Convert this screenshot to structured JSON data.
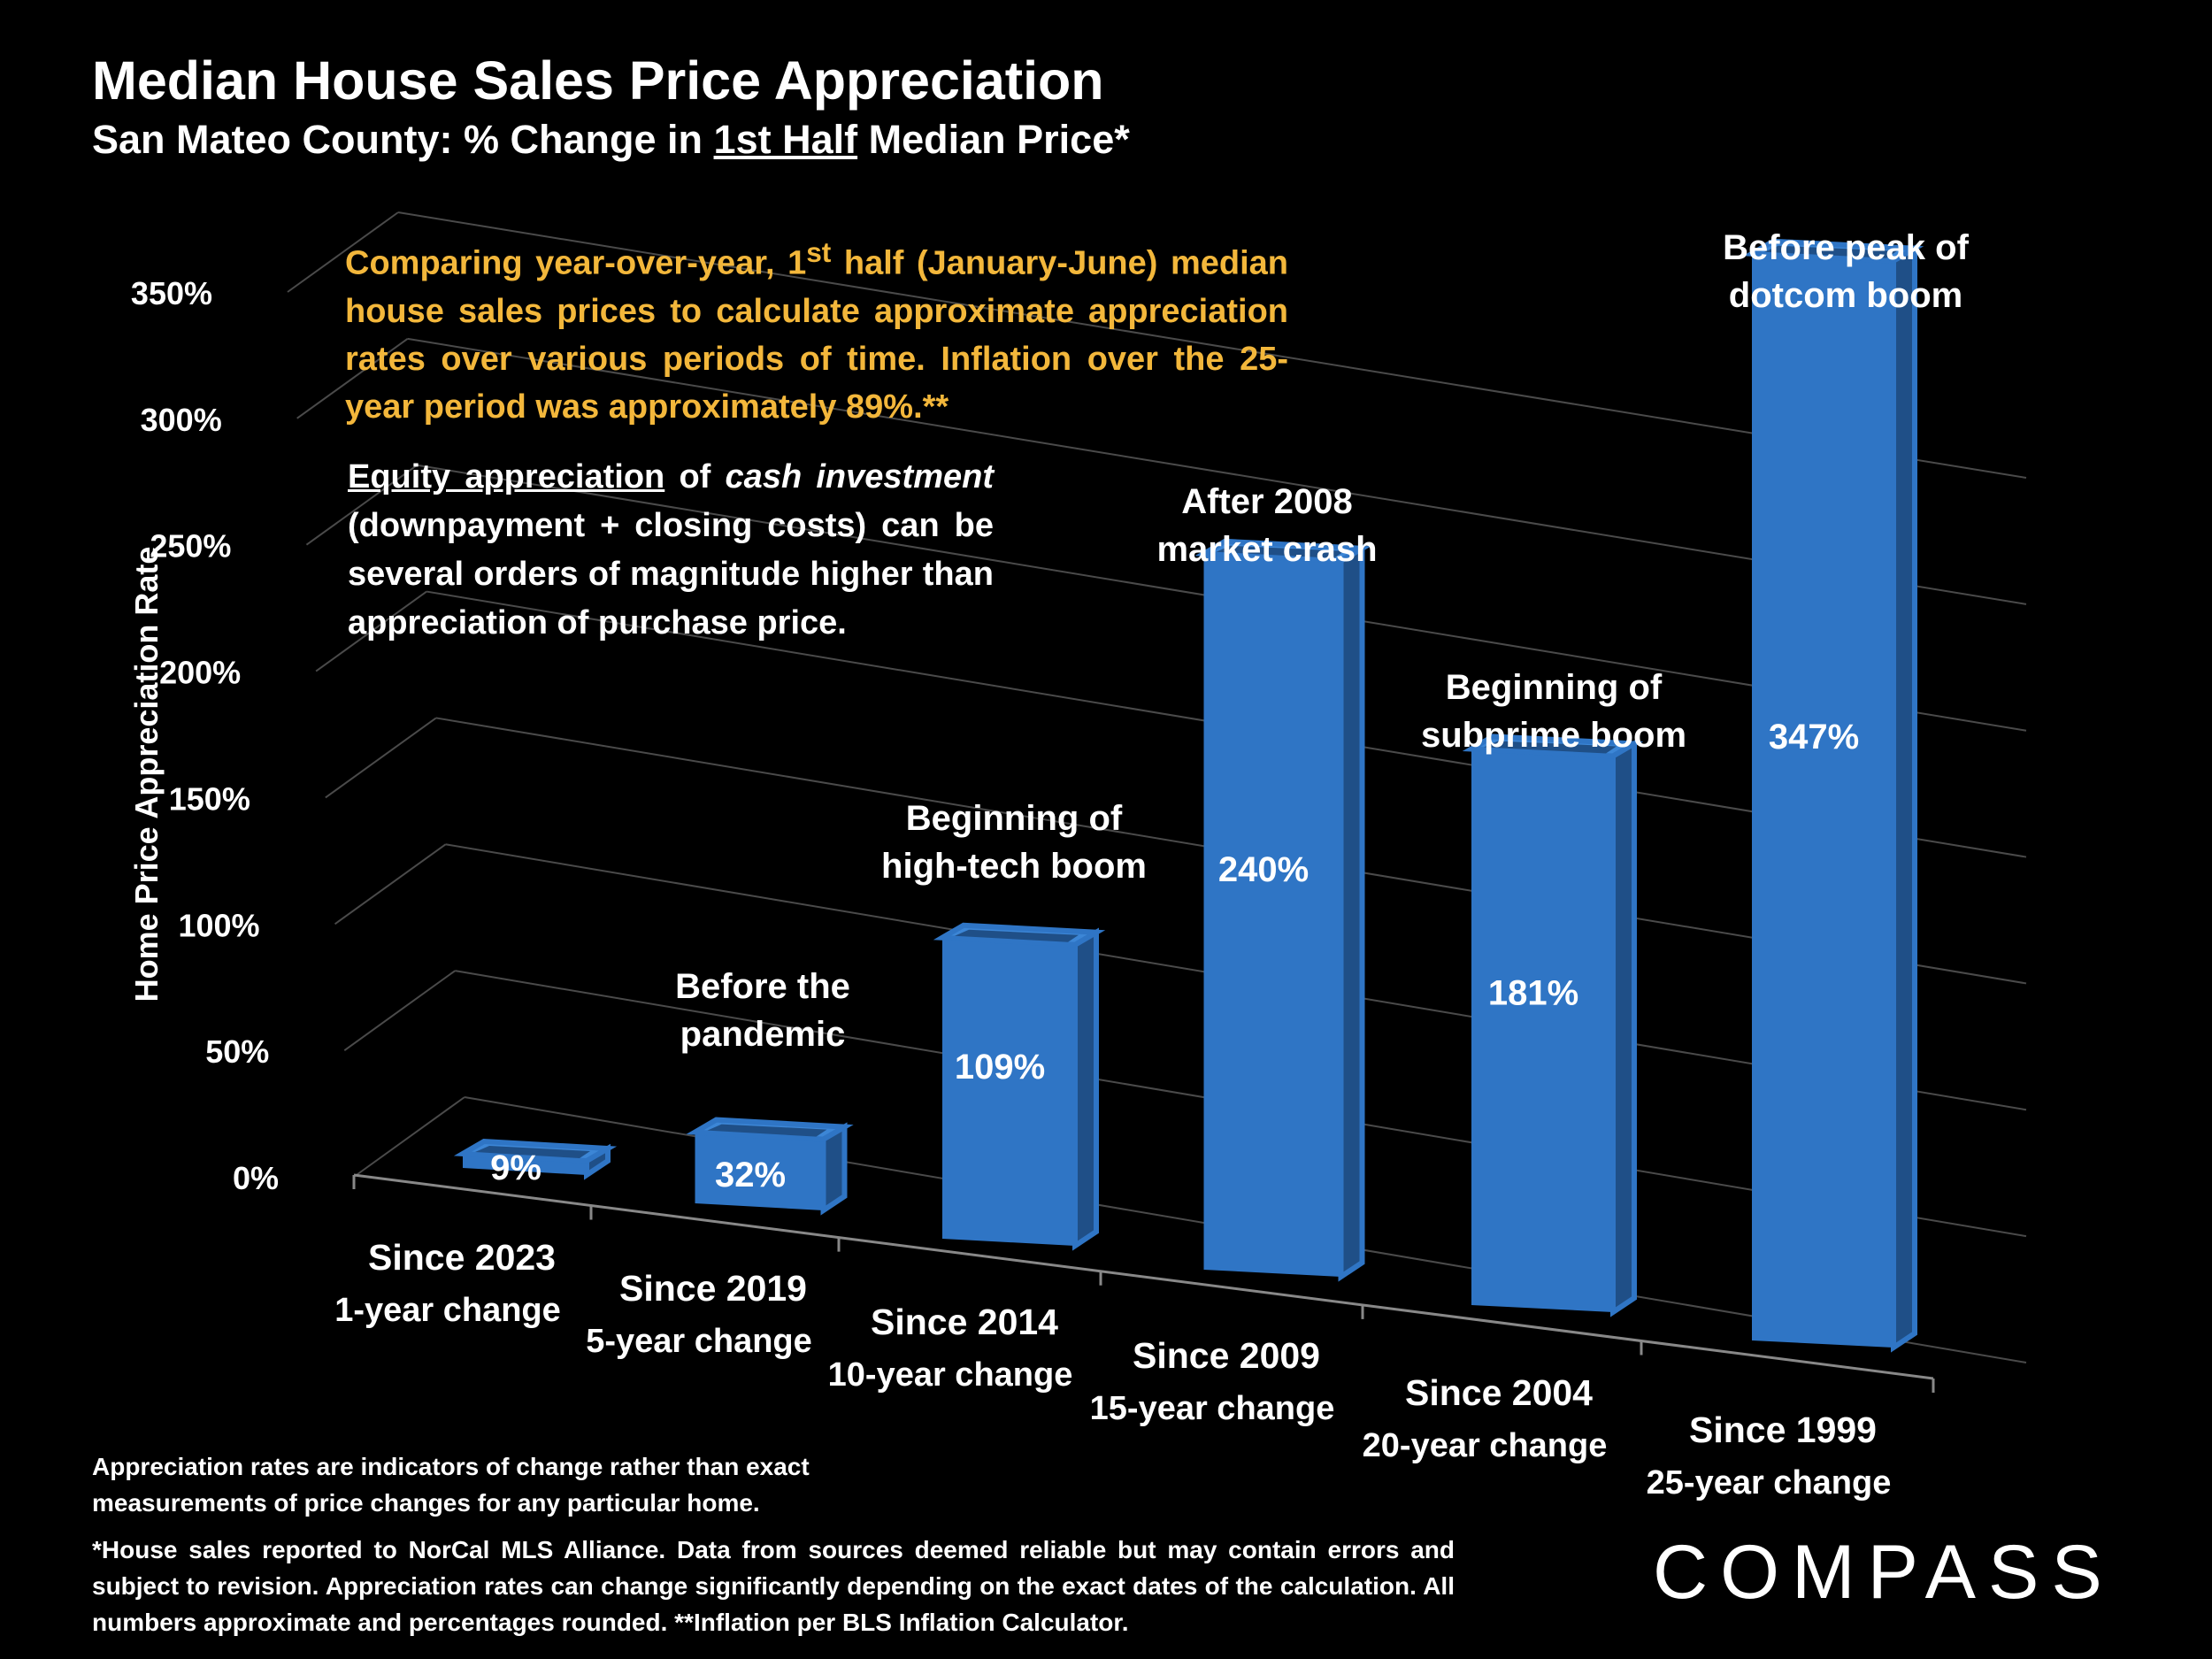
{
  "title": "Median House Sales Price Appreciation",
  "subtitle_pre": "San Mateo County: % Change in ",
  "subtitle_underlined": "1st Half",
  "subtitle_post": " Median Price*",
  "note_orange": {
    "pre": "Comparing year-over-year, 1",
    "sup": "st",
    "post": " half (January-June) median house sales prices to calculate approximate appreciation rates over various periods of time. Inflation over the 25-year period was approximately 89%.**"
  },
  "note_white": {
    "underlined": "Equity appreciation",
    "mid": " of ",
    "italic": "cash investment",
    "post": " (downpayment + closing costs) can be several orders of magnitude higher than appreciation of purchase price."
  },
  "footnote_1": "Appreciation rates are indicators of change rather than exact measurements of price changes for any particular home.",
  "footnote_2": "*House sales reported to NorCal MLS Alliance. Data from sources deemed reliable but may contain errors and subject to revision. Appreciation rates can change significantly depending on the exact dates of the calculation. All numbers  approximate and percentages rounded. **Inflation per BLS Inflation Calculator.",
  "logo": "COMPASS",
  "colors": {
    "bar": "#2f75c5",
    "bar_side": "#1f4f87",
    "bar_top": "#3c86d6",
    "note": "#f3b73b"
  },
  "chart_data": {
    "type": "bar",
    "title": "Median House Sales Price Appreciation",
    "ylabel": "Home Price Appreciation Rate",
    "ylim": [
      0,
      350
    ],
    "yticks": [
      0,
      50,
      100,
      150,
      200,
      250,
      300,
      350
    ],
    "ytick_labels": [
      "0%",
      "50%",
      "100%",
      "150%",
      "200%",
      "250%",
      "300%",
      "350%"
    ],
    "categories": [
      "Since 2023",
      "Since 2019",
      "Since 2014",
      "Since 2009",
      "Since 2004",
      "Since 1999"
    ],
    "sublabels": [
      "1-year change",
      "5-year change",
      "10-year change",
      "15-year change",
      "20-year change",
      "25-year change"
    ],
    "values": [
      9,
      32,
      109,
      240,
      181,
      347
    ],
    "value_labels": [
      "9%",
      "32%",
      "109%",
      "240%",
      "181%",
      "347%"
    ],
    "annotations": [
      {
        "index": 1,
        "lines": [
          "Before the",
          "pandemic"
        ]
      },
      {
        "index": 2,
        "lines": [
          "Beginning of",
          "high-tech boom"
        ]
      },
      {
        "index": 3,
        "lines": [
          "After 2008",
          "market crash"
        ]
      },
      {
        "index": 4,
        "lines": [
          "Beginning of",
          "subprime boom"
        ]
      },
      {
        "index": 5,
        "lines": [
          "Before peak of",
          "dotcom boom"
        ]
      }
    ]
  }
}
